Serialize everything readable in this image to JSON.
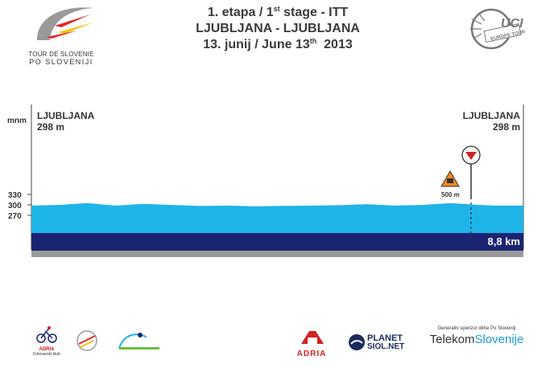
{
  "header": {
    "line1_prefix": "1. etapa / 1",
    "line1_sup": "st",
    "line1_suffix": " stage - ITT",
    "line2": "LJUBLJANA - LJUBLJANA",
    "line3_prefix": "13. junij / June 13",
    "line3_sup": "th",
    "line3_suffix": "  2013"
  },
  "tour_logo": {
    "line1": "TOUR DE SLOVENIE",
    "line2": "PO SLOVENIJI"
  },
  "uci_logo": {
    "main": "UCI",
    "sub": "EUROPE TOUR"
  },
  "profile": {
    "unit_label": "mnm",
    "start": {
      "name": "LJUBLJANA",
      "altitude": "298 m"
    },
    "finish": {
      "name": "LJUBLJANA",
      "altitude": "298 m"
    },
    "y_ticks": [
      "330",
      "300",
      "270"
    ],
    "distance_label": "8,8 km",
    "marker_last_km": "500 m",
    "colors": {
      "fill": "#1fb4e8",
      "base": "#1a2472",
      "shadow": "#9a9a9a"
    }
  },
  "chart_data": {
    "type": "area",
    "title": "1. etapa / 1st stage - ITT",
    "x": [
      0,
      0.5,
      1.0,
      1.5,
      2.0,
      2.5,
      3.0,
      3.5,
      4.0,
      4.5,
      5.0,
      5.5,
      6.0,
      6.5,
      7.0,
      7.5,
      8.0,
      8.3,
      8.8
    ],
    "y": [
      298,
      300,
      305,
      298,
      303,
      300,
      297,
      298,
      296,
      297,
      298,
      299,
      302,
      298,
      300,
      305,
      300,
      298,
      298
    ],
    "xlabel": "km",
    "ylabel": "mnm",
    "xlim": [
      0,
      8.8
    ],
    "ylim": [
      270,
      330
    ]
  },
  "footer": {
    "sponsor_left1": "ADRIA",
    "sponsor_left1_sub": "Kolesarski klub",
    "sponsor_adria": "ADRIA",
    "sponsor_planet1": "PLANET",
    "sponsor_planet2": "SIOL.NET",
    "sponsor_general": "Generalni sponzor dirke Po Sloveniji",
    "sponsor_telekom1": "Telekom",
    "sponsor_telekom2": "Slovenije"
  }
}
